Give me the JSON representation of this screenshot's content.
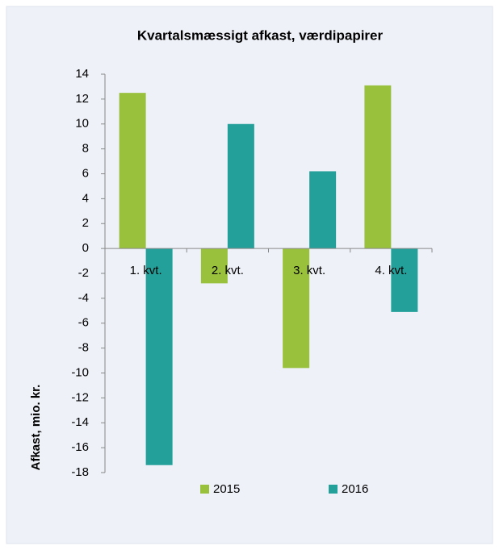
{
  "chart_data": {
    "type": "bar",
    "title": "Kvartalsmæssigt afkast, værdipapirer",
    "y_label": "Afkast, mio. kr.",
    "categories": [
      "1. kvt.",
      "2. kvt.",
      "3. kvt.",
      "4. kvt."
    ],
    "series": [
      {
        "name": "2015",
        "color": "#99c13c",
        "values": [
          12.5,
          -2.8,
          -9.6,
          13.1
        ]
      },
      {
        "name": "2016",
        "color": "#24a09b",
        "values": [
          -17.4,
          10.0,
          6.2,
          -5.1
        ]
      }
    ],
    "ylim": [
      -18,
      14
    ],
    "yticks": [
      -18,
      -16,
      -14,
      -12,
      -10,
      -8,
      -6,
      -4,
      -2,
      0,
      2,
      4,
      6,
      8,
      10,
      12,
      14
    ],
    "grid": false,
    "legend": "bottom"
  }
}
